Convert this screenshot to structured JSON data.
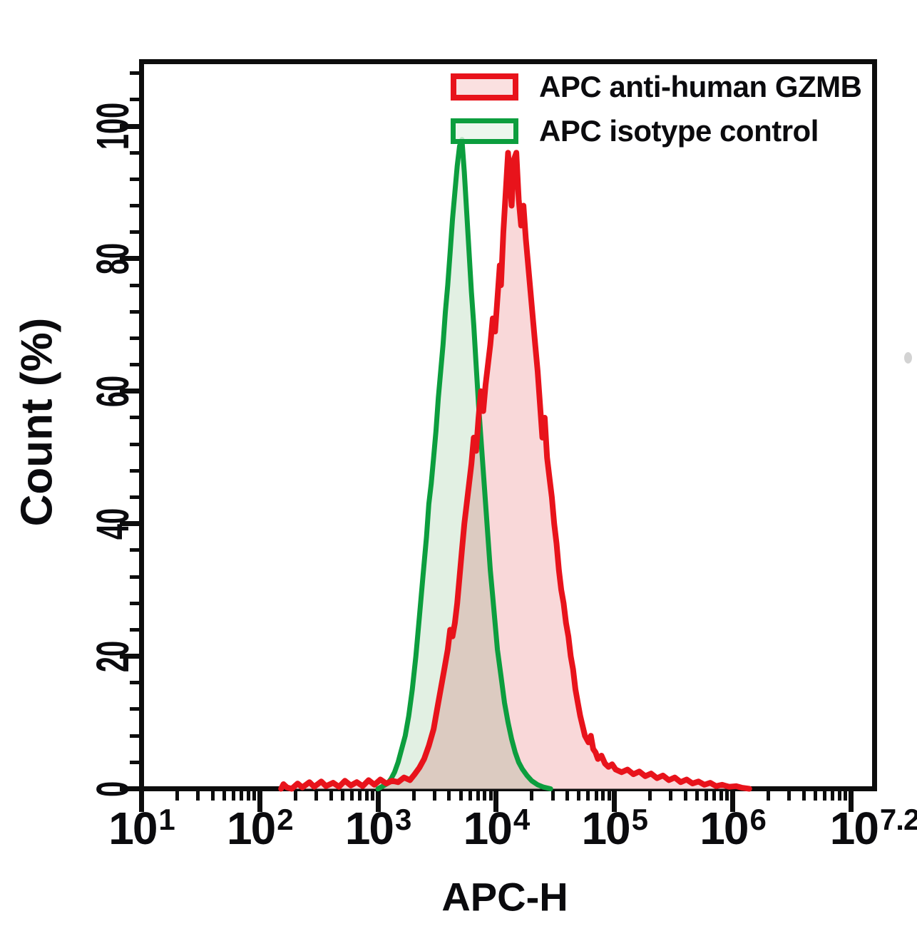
{
  "chart_data": {
    "type": "area",
    "subtype": "flow-cytometry-histogram-overlay",
    "title": "",
    "grid": false,
    "legend_position": "top-inside",
    "x_axis": {
      "label": "APC-H",
      "scale": "log10",
      "range_log10": [
        1,
        7.2
      ],
      "major_tick_logs": [
        1,
        2,
        3,
        4,
        5,
        6,
        7
      ],
      "tick_labels": [
        {
          "base": "10",
          "exp": "1",
          "log": 1
        },
        {
          "base": "10",
          "exp": "2",
          "log": 2
        },
        {
          "base": "10",
          "exp": "3",
          "log": 3
        },
        {
          "base": "10",
          "exp": "4",
          "log": 4
        },
        {
          "base": "10",
          "exp": "5",
          "log": 5
        },
        {
          "base": "10",
          "exp": "6",
          "log": 6
        },
        {
          "base": "10",
          "exp": "7.2",
          "log": 7.2
        }
      ]
    },
    "y_axis": {
      "label": "Count (%)",
      "range": [
        0,
        100
      ],
      "major_ticks": [
        0,
        20,
        40,
        60,
        80,
        100
      ],
      "minor_tick_step": 4
    },
    "series": [
      {
        "name": "APC anti-human GZMB",
        "stroke": "#e8131b",
        "fill": "#f9d8d9",
        "stroke_width": 8,
        "peak": {
          "x_log10": 4.15,
          "y_percent": 96
        },
        "points_log10_percent": [
          [
            2.18,
            0
          ],
          [
            2.2,
            0.7
          ],
          [
            2.23,
            0.2
          ],
          [
            2.27,
            0
          ],
          [
            2.32,
            0.8
          ],
          [
            2.36,
            0.2
          ],
          [
            2.42,
            1.0
          ],
          [
            2.46,
            0.3
          ],
          [
            2.52,
            1.1
          ],
          [
            2.56,
            0.4
          ],
          [
            2.62,
            0.9
          ],
          [
            2.67,
            0.3
          ],
          [
            2.72,
            1.2
          ],
          [
            2.77,
            0.5
          ],
          [
            2.82,
            1.0
          ],
          [
            2.87,
            0.4
          ],
          [
            2.92,
            1.3
          ],
          [
            2.97,
            0.6
          ],
          [
            3.02,
            1.4
          ],
          [
            3.07,
            0.8
          ],
          [
            3.12,
            1.2
          ],
          [
            3.17,
            1.0
          ],
          [
            3.22,
            1.7
          ],
          [
            3.27,
            1.3
          ],
          [
            3.31,
            2.2
          ],
          [
            3.35,
            3.2
          ],
          [
            3.39,
            4.5
          ],
          [
            3.43,
            6.5
          ],
          [
            3.47,
            9
          ],
          [
            3.5,
            12
          ],
          [
            3.53,
            15
          ],
          [
            3.56,
            18
          ],
          [
            3.59,
            21
          ],
          [
            3.61,
            24
          ],
          [
            3.63,
            23
          ],
          [
            3.65,
            25
          ],
          [
            3.67,
            28
          ],
          [
            3.69,
            32
          ],
          [
            3.71,
            36
          ],
          [
            3.73,
            40
          ],
          [
            3.75,
            43
          ],
          [
            3.77,
            46
          ],
          [
            3.79,
            49
          ],
          [
            3.81,
            53
          ],
          [
            3.83,
            51
          ],
          [
            3.85,
            56
          ],
          [
            3.87,
            60
          ],
          [
            3.89,
            57
          ],
          [
            3.91,
            61
          ],
          [
            3.93,
            64
          ],
          [
            3.95,
            67
          ],
          [
            3.97,
            71
          ],
          [
            3.99,
            69
          ],
          [
            4.01,
            74
          ],
          [
            4.03,
            79
          ],
          [
            4.04,
            76
          ],
          [
            4.06,
            84
          ],
          [
            4.08,
            90
          ],
          [
            4.1,
            96
          ],
          [
            4.12,
            91
          ],
          [
            4.13,
            88
          ],
          [
            4.15,
            95
          ],
          [
            4.17,
            96
          ],
          [
            4.19,
            89
          ],
          [
            4.21,
            85
          ],
          [
            4.23,
            88
          ],
          [
            4.25,
            83
          ],
          [
            4.27,
            79
          ],
          [
            4.29,
            75
          ],
          [
            4.31,
            71
          ],
          [
            4.33,
            67
          ],
          [
            4.35,
            63
          ],
          [
            4.37,
            58
          ],
          [
            4.39,
            53
          ],
          [
            4.41,
            56
          ],
          [
            4.43,
            50
          ],
          [
            4.45,
            47
          ],
          [
            4.47,
            44
          ],
          [
            4.49,
            40
          ],
          [
            4.51,
            37
          ],
          [
            4.53,
            33
          ],
          [
            4.55,
            30
          ],
          [
            4.57,
            28
          ],
          [
            4.59,
            25
          ],
          [
            4.61,
            23
          ],
          [
            4.63,
            20
          ],
          [
            4.65,
            18
          ],
          [
            4.67,
            15
          ],
          [
            4.69,
            13
          ],
          [
            4.71,
            11
          ],
          [
            4.73,
            9.5
          ],
          [
            4.75,
            8
          ],
          [
            4.78,
            7
          ],
          [
            4.8,
            8
          ],
          [
            4.82,
            6
          ],
          [
            4.84,
            5.5
          ],
          [
            4.86,
            4.5
          ],
          [
            4.89,
            5
          ],
          [
            4.92,
            3.8
          ],
          [
            4.95,
            3.3
          ],
          [
            4.98,
            3.7
          ],
          [
            5.01,
            2.9
          ],
          [
            5.06,
            2.5
          ],
          [
            5.11,
            2.9
          ],
          [
            5.16,
            2.2
          ],
          [
            5.21,
            2.6
          ],
          [
            5.26,
            1.9
          ],
          [
            5.31,
            2.3
          ],
          [
            5.36,
            1.6
          ],
          [
            5.41,
            2.0
          ],
          [
            5.46,
            1.3
          ],
          [
            5.51,
            1.7
          ],
          [
            5.56,
            1.0
          ],
          [
            5.61,
            1.4
          ],
          [
            5.66,
            0.8
          ],
          [
            5.71,
            1.1
          ],
          [
            5.76,
            0.6
          ],
          [
            5.81,
            0.9
          ],
          [
            5.86,
            0.4
          ],
          [
            5.91,
            0.6
          ],
          [
            5.97,
            0.3
          ],
          [
            6.03,
            0.4
          ],
          [
            6.08,
            0.15
          ],
          [
            6.14,
            0
          ]
        ]
      },
      {
        "name": "APC isotype control",
        "stroke": "#0c9e3e",
        "fill": "#e2f0e3",
        "stroke_width": 7,
        "peak": {
          "x_log10": 3.7,
          "y_percent": 98
        },
        "points_log10_percent": [
          [
            3.0,
            0
          ],
          [
            3.04,
            0.4
          ],
          [
            3.08,
            0.8
          ],
          [
            3.11,
            1.5
          ],
          [
            3.14,
            2.5
          ],
          [
            3.17,
            4
          ],
          [
            3.2,
            6
          ],
          [
            3.23,
            8
          ],
          [
            3.26,
            11
          ],
          [
            3.29,
            15
          ],
          [
            3.32,
            20
          ],
          [
            3.35,
            26
          ],
          [
            3.38,
            32
          ],
          [
            3.41,
            38
          ],
          [
            3.43,
            43
          ],
          [
            3.45,
            46
          ],
          [
            3.47,
            50
          ],
          [
            3.49,
            54
          ],
          [
            3.51,
            59
          ],
          [
            3.53,
            63
          ],
          [
            3.55,
            67
          ],
          [
            3.57,
            72
          ],
          [
            3.59,
            76
          ],
          [
            3.61,
            81
          ],
          [
            3.63,
            86
          ],
          [
            3.65,
            90
          ],
          [
            3.67,
            94
          ],
          [
            3.69,
            97
          ],
          [
            3.71,
            98
          ],
          [
            3.73,
            93
          ],
          [
            3.75,
            87
          ],
          [
            3.77,
            81
          ],
          [
            3.79,
            75
          ],
          [
            3.81,
            70
          ],
          [
            3.83,
            64
          ],
          [
            3.85,
            58
          ],
          [
            3.87,
            53
          ],
          [
            3.89,
            48
          ],
          [
            3.91,
            43
          ],
          [
            3.93,
            38
          ],
          [
            3.95,
            33
          ],
          [
            3.97,
            29
          ],
          [
            3.99,
            25
          ],
          [
            4.01,
            21
          ],
          [
            4.04,
            17
          ],
          [
            4.07,
            13
          ],
          [
            4.1,
            10
          ],
          [
            4.13,
            7.5
          ],
          [
            4.16,
            5.5
          ],
          [
            4.19,
            4
          ],
          [
            4.22,
            3
          ],
          [
            4.26,
            2
          ],
          [
            4.3,
            1.2
          ],
          [
            4.35,
            0.6
          ],
          [
            4.4,
            0.25
          ],
          [
            4.46,
            0
          ]
        ]
      }
    ]
  }
}
